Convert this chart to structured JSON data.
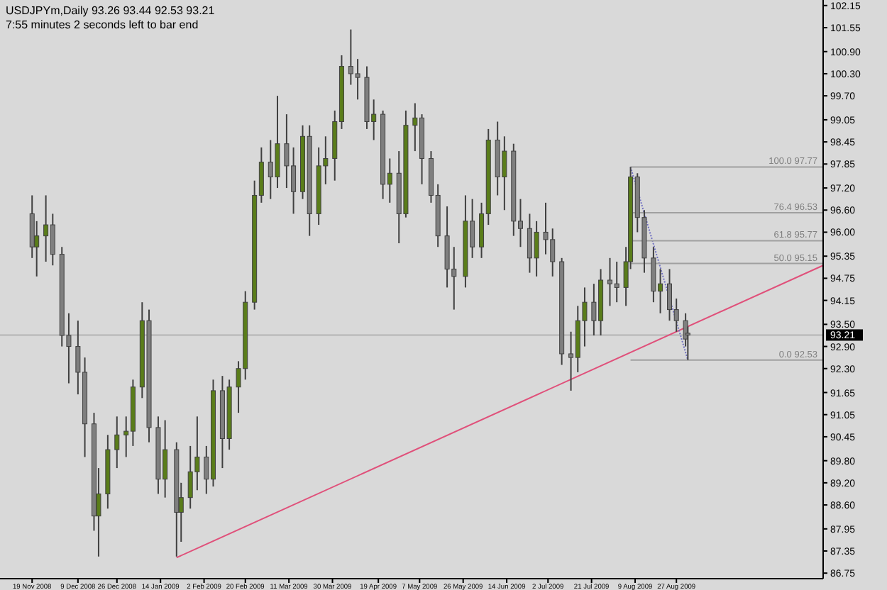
{
  "chart_data": {
    "type": "candlestick",
    "title": "USDJPYm,Daily  93.26 93.44 92.53 93.21",
    "subtitle": "7:55 minutes 2 seconds left to bar end",
    "x": [
      "2008-11-19",
      "2008-11-21",
      "2008-11-25",
      "2008-11-28",
      "2008-12-02",
      "2008-12-05",
      "2008-12-09",
      "2008-12-12",
      "2008-12-16",
      "2008-12-18",
      "2008-12-22",
      "2008-12-26",
      "2008-12-30",
      "2009-01-02",
      "2009-01-06",
      "2009-01-09",
      "2009-01-13",
      "2009-01-16",
      "2009-01-21",
      "2009-01-23",
      "2009-01-27",
      "2009-01-30",
      "2009-02-03",
      "2009-02-06",
      "2009-02-10",
      "2009-02-13",
      "2009-02-17",
      "2009-02-20",
      "2009-02-24",
      "2009-02-27",
      "2009-03-03",
      "2009-03-06",
      "2009-03-10",
      "2009-03-13",
      "2009-03-17",
      "2009-03-20",
      "2009-03-24",
      "2009-03-27",
      "2009-03-31",
      "2009-04-03",
      "2009-04-07",
      "2009-04-10",
      "2009-04-14",
      "2009-04-17",
      "2009-04-21",
      "2009-04-24",
      "2009-04-28",
      "2009-05-01",
      "2009-05-05",
      "2009-05-08",
      "2009-05-12",
      "2009-05-15",
      "2009-05-19",
      "2009-05-22",
      "2009-05-27",
      "2009-05-30",
      "2009-06-03",
      "2009-06-06",
      "2009-06-10",
      "2009-06-13",
      "2009-06-17",
      "2009-06-20",
      "2009-06-24",
      "2009-06-27",
      "2009-07-01",
      "2009-07-04",
      "2009-07-08",
      "2009-07-12",
      "2009-07-15",
      "2009-07-18",
      "2009-07-22",
      "2009-07-25",
      "2009-07-29",
      "2009-08-01",
      "2009-08-05",
      "2009-08-07",
      "2009-08-10",
      "2009-08-13",
      "2009-08-17",
      "2009-08-20",
      "2009-08-24",
      "2009-08-27",
      "2009-08-31",
      "2009-09-01"
    ],
    "ohlc": [
      [
        96.5,
        97.0,
        95.3,
        95.6
      ],
      [
        95.6,
        96.3,
        94.8,
        95.9
      ],
      [
        95.9,
        97.0,
        95.2,
        96.2
      ],
      [
        96.2,
        96.5,
        95.1,
        95.4
      ],
      [
        95.4,
        95.6,
        92.9,
        93.2
      ],
      [
        93.2,
        93.8,
        91.9,
        92.9
      ],
      [
        92.9,
        93.6,
        91.6,
        92.2
      ],
      [
        92.2,
        92.6,
        89.9,
        90.8
      ],
      [
        90.8,
        91.1,
        87.9,
        88.3
      ],
      [
        88.3,
        89.6,
        87.2,
        88.9
      ],
      [
        88.9,
        90.5,
        88.5,
        90.1
      ],
      [
        90.1,
        91.0,
        89.6,
        90.5
      ],
      [
        90.5,
        91.0,
        89.9,
        90.6
      ],
      [
        90.6,
        92.0,
        90.2,
        91.8
      ],
      [
        91.8,
        94.1,
        91.5,
        93.6
      ],
      [
        93.6,
        93.9,
        90.3,
        90.7
      ],
      [
        90.7,
        91.0,
        88.9,
        89.3
      ],
      [
        89.3,
        90.9,
        88.8,
        90.1
      ],
      [
        90.1,
        90.3,
        87.2,
        88.4
      ],
      [
        88.4,
        89.2,
        87.6,
        88.8
      ],
      [
        88.8,
        90.2,
        88.5,
        89.5
      ],
      [
        89.5,
        91.0,
        89.0,
        89.9
      ],
      [
        89.9,
        90.2,
        88.9,
        89.3
      ],
      [
        89.3,
        92.0,
        89.1,
        91.7
      ],
      [
        91.7,
        92.1,
        89.6,
        90.4
      ],
      [
        90.4,
        92.0,
        90.1,
        91.8
      ],
      [
        91.8,
        92.5,
        91.1,
        92.3
      ],
      [
        92.3,
        94.4,
        92.0,
        94.1
      ],
      [
        94.1,
        97.4,
        93.9,
        97.0
      ],
      [
        97.0,
        98.3,
        96.8,
        97.9
      ],
      [
        97.9,
        98.5,
        96.9,
        97.5
      ],
      [
        97.5,
        99.7,
        97.2,
        98.4
      ],
      [
        98.4,
        99.2,
        97.2,
        97.8
      ],
      [
        97.8,
        98.3,
        96.5,
        97.1
      ],
      [
        97.1,
        98.9,
        96.9,
        98.6
      ],
      [
        98.6,
        98.9,
        95.9,
        96.5
      ],
      [
        96.5,
        98.3,
        96.2,
        97.8
      ],
      [
        97.8,
        98.6,
        97.3,
        98.0
      ],
      [
        98.0,
        99.3,
        97.4,
        99.0
      ],
      [
        99.0,
        100.8,
        98.8,
        100.5
      ],
      [
        100.5,
        101.5,
        100.0,
        100.3
      ],
      [
        100.3,
        100.7,
        99.6,
        100.2
      ],
      [
        100.2,
        100.5,
        98.8,
        99.0
      ],
      [
        99.0,
        99.6,
        98.5,
        99.2
      ],
      [
        99.2,
        99.3,
        96.9,
        97.3
      ],
      [
        97.3,
        98.0,
        96.8,
        97.6
      ],
      [
        97.6,
        98.2,
        95.7,
        96.5
      ],
      [
        96.5,
        99.3,
        96.4,
        98.9
      ],
      [
        98.9,
        99.5,
        98.2,
        99.1
      ],
      [
        99.1,
        99.2,
        97.3,
        98.0
      ],
      [
        98.0,
        98.2,
        96.8,
        97.0
      ],
      [
        97.0,
        97.3,
        95.6,
        95.9
      ],
      [
        95.9,
        96.7,
        94.5,
        95.0
      ],
      [
        95.0,
        95.6,
        93.9,
        94.8
      ],
      [
        94.8,
        97.0,
        94.5,
        96.3
      ],
      [
        96.3,
        96.9,
        95.3,
        95.6
      ],
      [
        95.6,
        96.8,
        95.3,
        96.5
      ],
      [
        96.5,
        98.8,
        96.2,
        98.5
      ],
      [
        98.5,
        99.0,
        97.0,
        97.5
      ],
      [
        97.5,
        98.6,
        96.6,
        98.2
      ],
      [
        98.2,
        98.4,
        95.9,
        96.3
      ],
      [
        96.3,
        96.9,
        95.6,
        96.1
      ],
      [
        96.1,
        96.5,
        94.9,
        95.3
      ],
      [
        95.3,
        96.3,
        94.8,
        96.0
      ],
      [
        96.0,
        96.8,
        95.4,
        95.8
      ],
      [
        95.8,
        96.1,
        94.8,
        95.2
      ],
      [
        95.2,
        95.3,
        92.4,
        92.7
      ],
      [
        92.7,
        93.3,
        91.7,
        92.6
      ],
      [
        92.6,
        94.0,
        92.2,
        93.6
      ],
      [
        93.6,
        94.5,
        92.9,
        94.1
      ],
      [
        94.1,
        94.6,
        93.2,
        93.6
      ],
      [
        93.6,
        95.0,
        93.2,
        94.7
      ],
      [
        94.7,
        95.3,
        94.0,
        94.6
      ],
      [
        94.6,
        95.2,
        94.1,
        94.5
      ],
      [
        94.5,
        95.6,
        94.0,
        95.2
      ],
      [
        95.2,
        97.77,
        95.0,
        97.5
      ],
      [
        97.5,
        97.6,
        96.0,
        96.4
      ],
      [
        96.4,
        96.6,
        94.9,
        95.3
      ],
      [
        95.3,
        95.6,
        94.1,
        94.4
      ],
      [
        94.4,
        95.0,
        93.8,
        94.6
      ],
      [
        94.6,
        95.0,
        93.6,
        93.9
      ],
      [
        93.9,
        94.2,
        93.3,
        93.6
      ],
      [
        93.6,
        93.8,
        92.9,
        93.1
      ],
      [
        93.26,
        93.44,
        92.53,
        93.21
      ]
    ],
    "colors": [
      "#7f7f7f",
      "#5a7d1a",
      "#5a7d1a",
      "#7f7f7f",
      "#7f7f7f",
      "#7f7f7f",
      "#7f7f7f",
      "#7f7f7f",
      "#7f7f7f",
      "#5a7d1a",
      "#5a7d1a",
      "#5a7d1a",
      "#5a7d1a",
      "#5a7d1a",
      "#5a7d1a",
      "#7f7f7f",
      "#7f7f7f",
      "#5a7d1a",
      "#7f7f7f",
      "#5a7d1a",
      "#5a7d1a",
      "#5a7d1a",
      "#7f7f7f",
      "#5a7d1a",
      "#7f7f7f",
      "#5a7d1a",
      "#5a7d1a",
      "#5a7d1a",
      "#5a7d1a",
      "#5a7d1a",
      "#7f7f7f",
      "#5a7d1a",
      "#7f7f7f",
      "#7f7f7f",
      "#5a7d1a",
      "#7f7f7f",
      "#5a7d1a",
      "#5a7d1a",
      "#5a7d1a",
      "#5a7d1a",
      "#7f7f7f",
      "#7f7f7f",
      "#7f7f7f",
      "#5a7d1a",
      "#7f7f7f",
      "#5a7d1a",
      "#7f7f7f",
      "#5a7d1a",
      "#5a7d1a",
      "#7f7f7f",
      "#7f7f7f",
      "#7f7f7f",
      "#7f7f7f",
      "#7f7f7f",
      "#5a7d1a",
      "#7f7f7f",
      "#5a7d1a",
      "#5a7d1a",
      "#7f7f7f",
      "#5a7d1a",
      "#7f7f7f",
      "#7f7f7f",
      "#7f7f7f",
      "#5a7d1a",
      "#7f7f7f",
      "#7f7f7f",
      "#7f7f7f",
      "#7f7f7f",
      "#5a7d1a",
      "#5a7d1a",
      "#7f7f7f",
      "#5a7d1a",
      "#7f7f7f",
      "#7f7f7f",
      "#5a7d1a",
      "#5a7d1a",
      "#7f7f7f",
      "#7f7f7f",
      "#7f7f7f",
      "#5a7d1a",
      "#7f7f7f",
      "#7f7f7f",
      "#7f7f7f",
      "#7f7f7f"
    ],
    "xlim": [
      "2008-11-05",
      "2009-10-30"
    ],
    "xticks": [
      {
        "value": "2008-11-19",
        "label": "19 Nov 2008"
      },
      {
        "value": "2008-12-09",
        "label": "9 Dec 2008"
      },
      {
        "value": "2008-12-26",
        "label": "26 Dec 2008"
      },
      {
        "value": "2009-01-14",
        "label": "14 Jan 2009"
      },
      {
        "value": "2009-02-02",
        "label": "2 Feb 2009"
      },
      {
        "value": "2009-02-20",
        "label": "20 Feb 2009"
      },
      {
        "value": "2009-03-11",
        "label": "11 Mar 2009"
      },
      {
        "value": "2009-03-30",
        "label": "30 Mar 2009"
      },
      {
        "value": "2009-04-19",
        "label": "19 Apr 2009"
      },
      {
        "value": "2009-05-07",
        "label": "7 May 2009"
      },
      {
        "value": "2009-05-26",
        "label": "26 May 2009"
      },
      {
        "value": "2009-06-14",
        "label": "14 Jun 2009"
      },
      {
        "value": "2009-07-02",
        "label": "2 Jul 2009"
      },
      {
        "value": "2009-07-21",
        "label": "21 Jul 2009"
      },
      {
        "value": "2009-08-09",
        "label": "9 Aug 2009"
      },
      {
        "value": "2009-08-27",
        "label": "27 Aug 2009"
      }
    ],
    "ylim": [
      86.6,
      102.3
    ],
    "yticks": [
      102.15,
      101.55,
      {
        "value": 100.9,
        "label": "100.90"
      },
      {
        "value": 100.3,
        "label": "100.30"
      },
      {
        "value": 99.7,
        "label": "99.70"
      },
      99.05,
      98.45,
      97.85,
      {
        "value": 97.2,
        "label": "97.20"
      },
      {
        "value": 96.6,
        "label": "96.60"
      },
      {
        "value": 96,
        "label": "96.00"
      },
      95.35,
      94.75,
      94.15,
      {
        "value": 93.5,
        "label": "93.50"
      },
      {
        "value": 92.9,
        "label": "92.90"
      },
      {
        "value": 92.3,
        "label": "92.30"
      },
      91.65,
      91.05,
      90.45,
      {
        "value": 89.8,
        "label": "89.80"
      },
      {
        "value": 89.2,
        "label": "89.20"
      },
      {
        "value": 88.6,
        "label": "88.60"
      },
      87.95,
      87.35,
      86.75
    ],
    "series": [
      {
        "type": "line",
        "color": "#e0507a",
        "line_style": "solid",
        "x": [
          "2009-01-21",
          "2009-10-30"
        ],
        "values": [
          87.17,
          95.1
        ]
      },
      {
        "type": "line",
        "color": "#7070c0",
        "line_style": "dotted",
        "x": [
          "2009-08-07",
          "2009-09-01"
        ],
        "values": [
          97.77,
          92.53
        ]
      },
      {
        "type": "line",
        "color": "#a0a0a0",
        "line_style": "solid",
        "x": [
          "2009-08-07",
          "2009-10-30"
        ],
        "values": [
          97.77,
          97.77
        ]
      },
      {
        "type": "line",
        "color": "#a0a0a0",
        "line_style": "solid",
        "x": [
          "2009-08-07",
          "2009-10-30"
        ],
        "values": [
          96.53,
          96.53
        ]
      },
      {
        "type": "line",
        "color": "#a0a0a0",
        "line_style": "solid",
        "x": [
          "2009-08-07",
          "2009-10-30"
        ],
        "values": [
          95.77,
          95.77
        ]
      },
      {
        "type": "line",
        "color": "#a0a0a0",
        "line_style": "solid",
        "x": [
          "2009-08-07",
          "2009-10-30"
        ],
        "values": [
          95.15,
          95.15
        ]
      },
      {
        "type": "line",
        "color": "#a0a0a0",
        "line_style": "solid",
        "x": [
          "2009-08-07",
          "2009-10-30"
        ],
        "values": [
          92.53,
          92.53
        ]
      }
    ],
    "ref_lines": [
      {
        "axis": "y",
        "value": 93.21,
        "label": "93.21",
        "color": "#b4b4b4"
      }
    ],
    "annotations": [
      {
        "text": "100.0  97.77",
        "x": "2009-10-30",
        "y": 97.77
      },
      {
        "text": "76.4  96.53",
        "x": "2009-10-30",
        "y": 96.53
      },
      {
        "text": "61.8  95.77",
        "x": "2009-10-30",
        "y": 95.77
      },
      {
        "text": "50.0  95.15",
        "x": "2009-10-30",
        "y": 95.15
      },
      {
        "text": "0.0  92.53",
        "x": "2009-10-30",
        "y": 92.53
      }
    ]
  }
}
